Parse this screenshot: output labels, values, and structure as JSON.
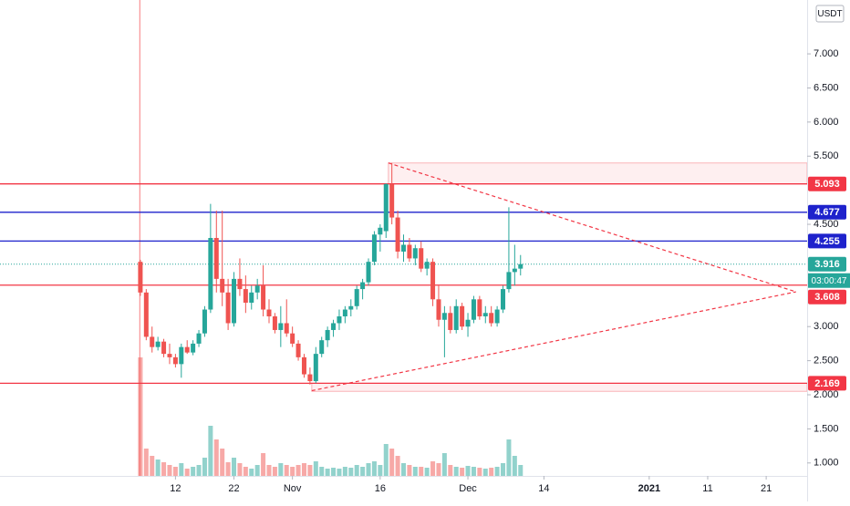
{
  "chart_data": {
    "type": "candlestick",
    "currency": "USDT",
    "countdown": "03:00:47",
    "up_color": "#26a69a",
    "down_color": "#ef5350",
    "xlim": [
      -50,
      88
    ],
    "ylim": [
      0.81,
      7.79
    ],
    "xticks": [
      {
        "value": -20,
        "label": "12"
      },
      {
        "value": -10,
        "label": "22"
      },
      {
        "value": 0,
        "label": "Nov"
      },
      {
        "value": 15,
        "label": "16"
      },
      {
        "value": 30,
        "label": "Dec"
      },
      {
        "value": 43,
        "label": "14"
      },
      {
        "value": 61,
        "label": "2021"
      },
      {
        "value": 71,
        "label": "11"
      },
      {
        "value": 81,
        "label": "21"
      }
    ],
    "yticks": [
      {
        "value": 1,
        "label": "1.000"
      },
      {
        "value": 1.5,
        "label": "1.500"
      },
      {
        "value": 2,
        "label": "2.000"
      },
      {
        "value": 2.5,
        "label": "2.500"
      },
      {
        "value": 3,
        "label": "3.000"
      },
      {
        "value": 4.5,
        "label": "4.500"
      },
      {
        "value": 5.5,
        "label": "5.500"
      },
      {
        "value": 6,
        "label": "6.000"
      },
      {
        "value": 6.5,
        "label": "6.500"
      },
      {
        "value": 7,
        "label": "7.000"
      }
    ],
    "x": [
      -26,
      -25,
      -24,
      -23,
      -22,
      -21,
      -20,
      -19,
      -18,
      -17,
      -16,
      -15,
      -14,
      -13,
      -12,
      -11,
      -10,
      -9,
      -8,
      -7,
      -6,
      -5,
      -4,
      -3,
      -2,
      -1,
      0,
      1,
      2,
      3,
      4,
      5,
      6,
      7,
      8,
      9,
      10,
      11,
      12,
      13,
      14,
      15,
      16,
      17,
      18,
      19,
      20,
      21,
      22,
      23,
      24,
      25,
      26,
      27,
      28,
      29,
      30,
      31,
      32,
      33,
      34,
      35,
      36,
      37,
      38,
      39
    ],
    "open": [
      3.95,
      3.5,
      2.85,
      2.7,
      2.78,
      2.6,
      2.55,
      2.45,
      2.7,
      2.62,
      2.75,
      2.9,
      3.25,
      4.3,
      3.7,
      3.5,
      3.05,
      3.7,
      3.55,
      3.35,
      3.5,
      3.6,
      3.25,
      3.15,
      2.95,
      3.05,
      2.9,
      2.75,
      2.55,
      2.3,
      2.2,
      2.6,
      2.8,
      2.95,
      3.05,
      3.15,
      3.25,
      3.3,
      3.55,
      3.65,
      3.95,
      4.35,
      4.4,
      5.09,
      4.6,
      4.1,
      4.2,
      4.0,
      4.15,
      3.85,
      3.95,
      3.4,
      3.1,
      3.2,
      2.95,
      3.3,
      3.0,
      3.1,
      3.4,
      3.15,
      3.2,
      3.05,
      3.25,
      3.55,
      3.8,
      3.85
    ],
    "high": [
      3.98,
      3.55,
      3.0,
      2.85,
      2.82,
      2.75,
      2.6,
      2.75,
      2.8,
      2.8,
      2.95,
      3.3,
      4.8,
      4.7,
      4.7,
      3.7,
      3.8,
      4.0,
      3.75,
      3.6,
      3.7,
      3.9,
      3.4,
      3.2,
      3.3,
      3.4,
      3.0,
      2.8,
      2.6,
      2.4,
      2.7,
      2.85,
      3.0,
      3.1,
      3.25,
      3.3,
      3.4,
      3.6,
      3.7,
      4.0,
      4.4,
      4.5,
      5.1,
      5.4,
      4.7,
      4.35,
      4.3,
      4.2,
      4.25,
      4.0,
      4.0,
      3.6,
      3.3,
      3.3,
      3.4,
      3.35,
      3.2,
      3.45,
      3.45,
      3.3,
      3.3,
      3.3,
      3.6,
      4.75,
      4.2,
      4.05
    ],
    "low": [
      3.45,
      2.8,
      2.62,
      2.65,
      2.55,
      2.45,
      2.4,
      2.25,
      2.6,
      2.58,
      2.7,
      2.85,
      3.2,
      3.5,
      3.3,
      2.95,
      3.0,
      3.45,
      3.2,
      3.25,
      3.4,
      3.15,
      3.05,
      2.9,
      2.7,
      2.85,
      2.7,
      2.5,
      2.25,
      2.15,
      2.17,
      2.55,
      2.7,
      2.85,
      2.95,
      3.05,
      3.15,
      3.25,
      3.4,
      3.6,
      3.9,
      4.1,
      4.3,
      4.5,
      4.0,
      3.95,
      3.95,
      3.9,
      3.8,
      3.75,
      3.3,
      3.0,
      2.55,
      2.9,
      2.9,
      2.95,
      2.85,
      3.05,
      3.1,
      3.05,
      3.0,
      3.0,
      3.2,
      3.5,
      3.6,
      3.75
    ],
    "close": [
      3.5,
      2.85,
      2.7,
      2.78,
      2.6,
      2.55,
      2.45,
      2.7,
      2.62,
      2.75,
      2.9,
      3.25,
      4.3,
      3.7,
      3.5,
      3.05,
      3.7,
      3.55,
      3.35,
      3.5,
      3.6,
      3.25,
      3.15,
      2.95,
      3.05,
      2.9,
      2.75,
      2.55,
      2.3,
      2.2,
      2.6,
      2.8,
      2.95,
      3.05,
      3.15,
      3.25,
      3.3,
      3.55,
      3.65,
      3.95,
      4.35,
      4.45,
      5.09,
      4.6,
      4.1,
      4.2,
      4.0,
      4.15,
      3.85,
      3.95,
      3.4,
      3.1,
      3.2,
      2.95,
      3.3,
      3.0,
      3.1,
      3.4,
      3.15,
      3.2,
      3.05,
      3.25,
      3.55,
      3.8,
      3.85,
      3.916
    ],
    "volume": [
      130,
      30,
      22,
      18,
      15,
      12,
      10,
      14,
      8,
      10,
      12,
      20,
      55,
      40,
      30,
      15,
      20,
      14,
      10,
      8,
      12,
      25,
      12,
      10,
      14,
      12,
      10,
      12,
      14,
      12,
      16,
      10,
      8,
      9,
      8,
      10,
      9,
      12,
      10,
      14,
      16,
      12,
      35,
      30,
      22,
      14,
      12,
      10,
      10,
      9,
      16,
      14,
      25,
      12,
      10,
      9,
      11,
      10,
      9,
      8,
      9,
      10,
      14,
      40,
      22,
      12
    ],
    "levels": [
      {
        "value": 5.093,
        "color": "#f23645"
      },
      {
        "value": 4.677,
        "color": "#1e22cc"
      },
      {
        "value": 4.255,
        "color": "#1e22cc"
      },
      {
        "value": 3.916,
        "color": "#26a69a",
        "dotted": true
      },
      {
        "value": 3.608,
        "color": "#f23645"
      },
      {
        "value": 2.169,
        "color": "#f23645"
      }
    ],
    "zones": [
      {
        "x": 16.4,
        "top": 5.4,
        "bottom": 5.093
      },
      {
        "x": 3.3,
        "top": 2.169,
        "bottom": 2.05
      }
    ],
    "trendlines": [
      {
        "x": [
          16.4,
          86.1
        ],
        "y": [
          5.4,
          3.51
        ]
      },
      {
        "x": [
          3.3,
          86.1
        ],
        "y": [
          2.06,
          3.51
        ]
      }
    ],
    "cursor_x": -26.1
  }
}
